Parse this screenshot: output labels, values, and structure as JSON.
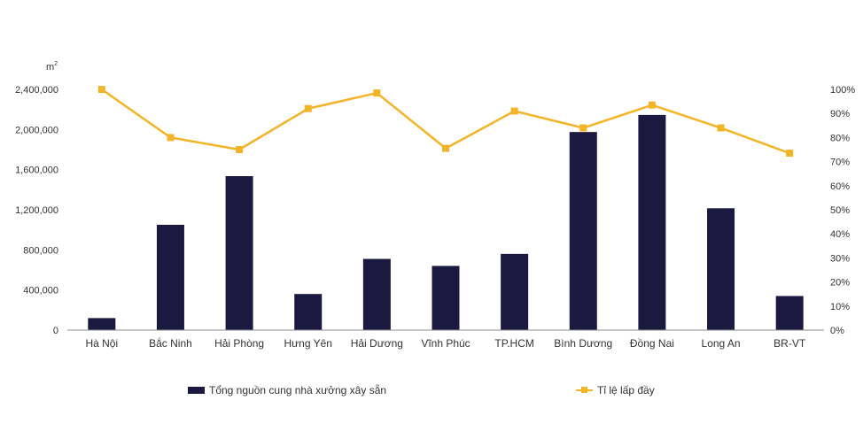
{
  "chart_data": {
    "type": "bar",
    "y_unit_label": "m",
    "y_unit_superscript": "2",
    "categories": [
      "Hà Nội",
      "Bắc Ninh",
      "Hải Phòng",
      "Hưng Yên",
      "Hải Dương",
      "Vĩnh Phúc",
      "TP.HCM",
      "Bình Dương",
      "Đồng Nai",
      "Long An",
      "BR-VT"
    ],
    "series": [
      {
        "name": "Tổng nguồn cung nhà xưởng xây sẵn",
        "type": "bar",
        "axis": "left",
        "color": "#1c1941",
        "values": [
          120000,
          1050000,
          1535000,
          360000,
          710000,
          640000,
          760000,
          1975000,
          2145000,
          1215000,
          340000
        ]
      },
      {
        "name": "Tỉ lệ lấp đầy",
        "type": "line",
        "axis": "right",
        "color": "#f4b427",
        "values": [
          100,
          80,
          75,
          92,
          98.5,
          75.5,
          91,
          84,
          93.5,
          84,
          73.5
        ]
      }
    ],
    "y_left": {
      "min": 0,
      "max": 2400000,
      "step": 400000,
      "tick_labels": [
        "0",
        "400,000",
        "800,000",
        "1,200,000",
        "1,600,000",
        "2,000,000",
        "2,400,000"
      ]
    },
    "y_right": {
      "min": 0,
      "max": 100,
      "step": 10,
      "tick_labels": [
        "0%",
        "10%",
        "20%",
        "30%",
        "40%",
        "50%",
        "60%",
        "70%",
        "80%",
        "90%",
        "100%"
      ]
    },
    "grid": false,
    "legend_position": "bottom"
  }
}
